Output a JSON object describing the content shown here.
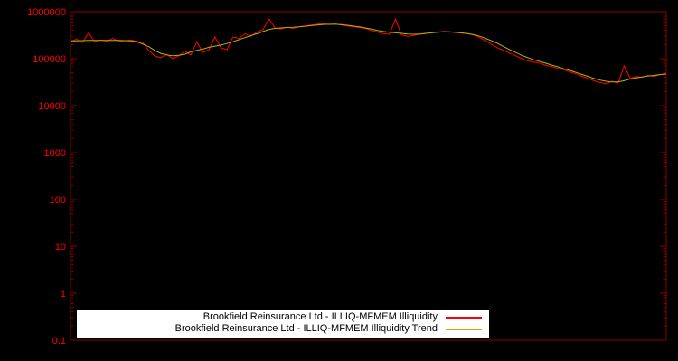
{
  "page": {
    "background": "#000000"
  },
  "chart": {
    "axis_color": "#8b0000",
    "tick_label_color": "#ff0000",
    "y_ticks": [
      {
        "value": 1000000,
        "label": "1000000"
      },
      {
        "value": 100000,
        "label": "100000"
      },
      {
        "value": 10000,
        "label": "10000"
      },
      {
        "value": 1000,
        "label": "1000"
      },
      {
        "value": 100,
        "label": "100"
      },
      {
        "value": 10,
        "label": "10"
      },
      {
        "value": 1,
        "label": "1"
      },
      {
        "value": 0.1,
        "label": "0.1"
      }
    ]
  },
  "legend": {
    "entries": [
      {
        "label": "Brookfield Reinsurance Ltd - ILLIQ-MFMEM Illiquidity",
        "color": "#ff0000"
      },
      {
        "label": "Brookfield Reinsurance Ltd - ILLIQ-MFMEM Illiquidity Trend",
        "color": "#b4b400"
      }
    ]
  },
  "chart_data": {
    "type": "line",
    "title": "",
    "xlabel": "",
    "ylabel": "",
    "x_axis": {
      "tick_labels_visible": false
    },
    "y_axis": {
      "scale": "log",
      "range": [
        0.1,
        1000000
      ],
      "tick_values": [
        1000000,
        100000,
        10000,
        1000,
        100,
        10,
        1,
        0.1
      ]
    },
    "grid": false,
    "legend_position": "bottom-center",
    "series": [
      {
        "name": "Brookfield Reinsurance Ltd - ILLIQ-MFMEM Illiquidity",
        "color": "#ff0000",
        "values": [
          230000,
          260000,
          220000,
          350000,
          230000,
          250000,
          235000,
          270000,
          235000,
          240000,
          250000,
          235000,
          220000,
          150000,
          115000,
          105000,
          125000,
          100000,
          115000,
          145000,
          120000,
          230000,
          135000,
          155000,
          290000,
          170000,
          155000,
          290000,
          270000,
          340000,
          300000,
          370000,
          420000,
          700000,
          450000,
          430000,
          470000,
          440000,
          480000,
          500000,
          520000,
          540000,
          560000,
          530000,
          550000,
          520000,
          500000,
          480000,
          460000,
          440000,
          400000,
          370000,
          340000,
          330000,
          700000,
          320000,
          300000,
          310000,
          330000,
          340000,
          360000,
          370000,
          380000,
          370000,
          360000,
          350000,
          340000,
          320000,
          280000,
          240000,
          200000,
          170000,
          150000,
          130000,
          115000,
          100000,
          90000,
          85000,
          80000,
          72000,
          68000,
          62000,
          58000,
          52000,
          48000,
          42000,
          38000,
          34000,
          31000,
          29000,
          33000,
          30000,
          70000,
          38000,
          42000,
          40000,
          44000,
          42000,
          46000,
          48000
        ]
      },
      {
        "name": "Brookfield Reinsurance Ltd - ILLIQ-MFMEM Illiquidity Trend",
        "color": "#b4b400",
        "values": [
          240000,
          240000,
          242000,
          245000,
          245000,
          245000,
          245000,
          245000,
          245000,
          242000,
          240000,
          230000,
          205000,
          180000,
          150000,
          130000,
          120000,
          115000,
          118000,
          125000,
          140000,
          150000,
          160000,
          175000,
          185000,
          195000,
          210000,
          230000,
          255000,
          280000,
          310000,
          340000,
          380000,
          420000,
          440000,
          450000,
          460000,
          465000,
          475000,
          490000,
          505000,
          520000,
          535000,
          540000,
          540000,
          530000,
          515000,
          495000,
          475000,
          450000,
          425000,
          400000,
          380000,
          365000,
          355000,
          345000,
          335000,
          330000,
          335000,
          345000,
          355000,
          365000,
          372000,
          372000,
          365000,
          355000,
          342000,
          325000,
          300000,
          270000,
          240000,
          210000,
          180000,
          155000,
          135000,
          118000,
          105000,
          95000,
          87000,
          80000,
          73000,
          67000,
          61000,
          56000,
          51000,
          46000,
          42000,
          38000,
          35000,
          33000,
          32000,
          32000,
          34000,
          37000,
          39000,
          41000,
          43000,
          44000,
          46000,
          47000
        ]
      }
    ]
  }
}
